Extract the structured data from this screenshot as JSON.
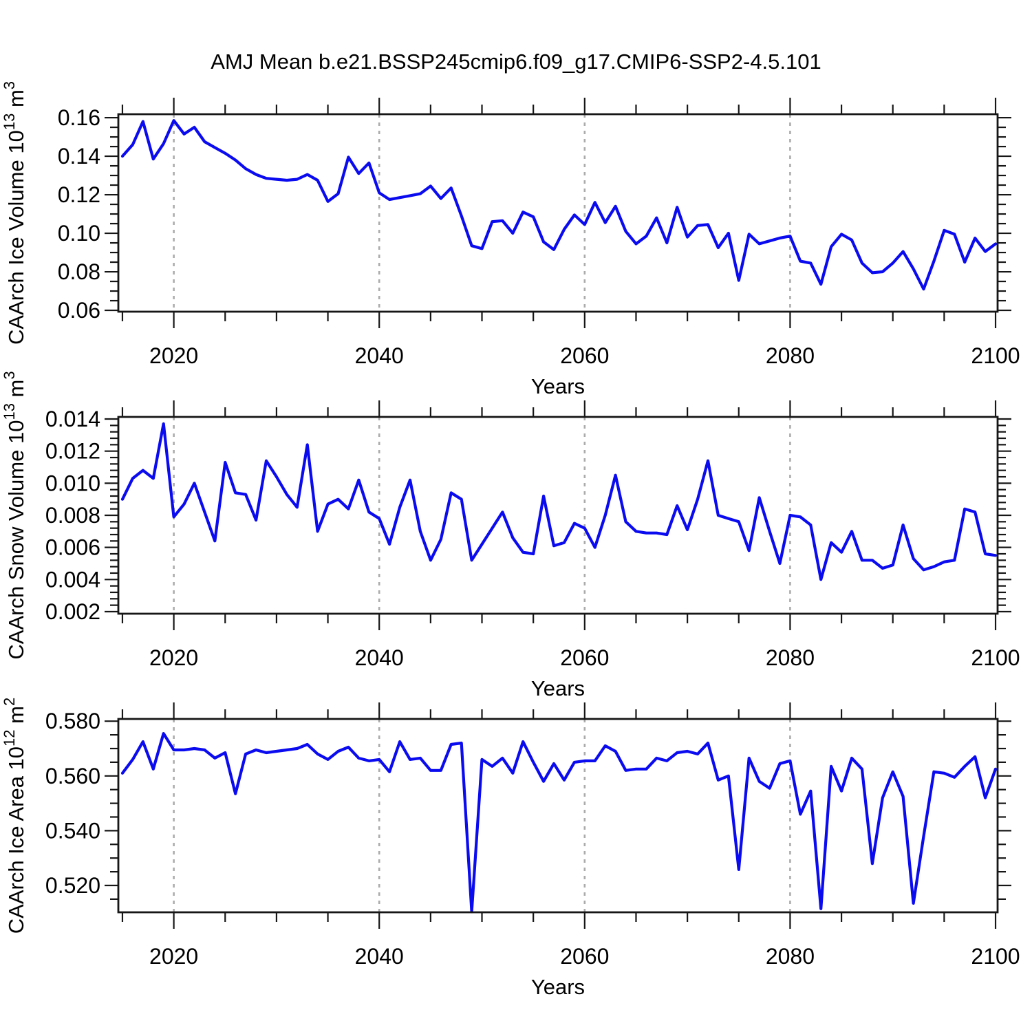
{
  "title": "AMJ Mean b.e21.BSSP245cmip6.f09_g17.CMIP6-SSP2-4.5.101",
  "colors": {
    "line": "#0b0bf0",
    "frame": "#161616",
    "grid": "#ababab",
    "text": "#000000",
    "background": "#ffffff"
  },
  "years": [
    2015,
    2016,
    2017,
    2018,
    2019,
    2020,
    2021,
    2022,
    2023,
    2024,
    2025,
    2026,
    2027,
    2028,
    2029,
    2030,
    2031,
    2032,
    2033,
    2034,
    2035,
    2036,
    2037,
    2038,
    2039,
    2040,
    2041,
    2042,
    2043,
    2044,
    2045,
    2046,
    2047,
    2048,
    2049,
    2050,
    2051,
    2052,
    2053,
    2054,
    2055,
    2056,
    2057,
    2058,
    2059,
    2060,
    2061,
    2062,
    2063,
    2064,
    2065,
    2066,
    2067,
    2068,
    2069,
    2070,
    2071,
    2072,
    2073,
    2074,
    2075,
    2076,
    2077,
    2078,
    2079,
    2080,
    2081,
    2082,
    2083,
    2084,
    2085,
    2086,
    2087,
    2088,
    2089,
    2090,
    2091,
    2092,
    2093,
    2094,
    2095,
    2096,
    2097,
    2098,
    2099,
    2100
  ],
  "chart_data": [
    {
      "type": "line",
      "ylabel": "CAArch Ice Volume 10¹³ m³",
      "ylabel_parts": [
        {
          "t": "CAArch Ice Volume 10"
        },
        {
          "t": "13",
          "sup": true
        },
        {
          "t": " m"
        },
        {
          "t": "3",
          "sup": true
        }
      ],
      "xlabel": "Years",
      "xlim": [
        2014.6,
        2100.2
      ],
      "ylim": [
        0.0593,
        0.1618
      ],
      "yticks": [
        0.06,
        0.08,
        0.1,
        0.12,
        0.14,
        0.16
      ],
      "ytick_labels": [
        "0.06",
        "0.08",
        "0.10",
        "0.12",
        "0.14",
        "0.16"
      ],
      "y_minor_step": 0.005,
      "x_major_ticks": [
        2020,
        2040,
        2060,
        2080,
        2100
      ],
      "xtick_labels": [
        "2020",
        "2040",
        "2060",
        "2080",
        "2100"
      ],
      "x_minor_step": 5,
      "grid_x": [
        2020,
        2040,
        2060,
        2080
      ],
      "grid_on": true,
      "legend": "none",
      "values": [
        0.14,
        0.146,
        0.158,
        0.1385,
        0.1465,
        0.1585,
        0.1515,
        0.155,
        0.1475,
        0.1445,
        0.1415,
        0.138,
        0.1335,
        0.1305,
        0.1285,
        0.128,
        0.1275,
        0.128,
        0.1305,
        0.1275,
        0.1165,
        0.1205,
        0.1395,
        0.131,
        0.1365,
        0.121,
        0.1175,
        0.1185,
        0.1195,
        0.1205,
        0.1245,
        0.118,
        0.1235,
        0.109,
        0.0935,
        0.092,
        0.106,
        0.1065,
        0.1,
        0.111,
        0.1085,
        0.0955,
        0.0915,
        0.102,
        0.1095,
        0.1045,
        0.116,
        0.1055,
        0.114,
        0.101,
        0.0945,
        0.0985,
        0.108,
        0.095,
        0.1135,
        0.098,
        0.104,
        0.1045,
        0.0925,
        0.1,
        0.0755,
        0.0995,
        0.0945,
        0.096,
        0.0975,
        0.0985,
        0.0855,
        0.0845,
        0.0735,
        0.093,
        0.0995,
        0.0965,
        0.0845,
        0.0795,
        0.08,
        0.0845,
        0.0905,
        0.0815,
        0.071,
        0.0855,
        0.1015,
        0.0995,
        0.085,
        0.0975,
        0.0905,
        0.0945
      ]
    },
    {
      "type": "line",
      "ylabel": "CAArch Snow Volume 10¹³ m³",
      "ylabel_parts": [
        {
          "t": "CAArch Snow Volume 10"
        },
        {
          "t": "13",
          "sup": true
        },
        {
          "t": " m"
        },
        {
          "t": "3",
          "sup": true
        }
      ],
      "xlabel": "Years",
      "xlim": [
        2014.6,
        2100.2
      ],
      "ylim": [
        0.00187,
        0.01413
      ],
      "yticks": [
        0.002,
        0.004,
        0.006,
        0.008,
        0.01,
        0.012,
        0.014
      ],
      "ytick_labels": [
        "0.002",
        "0.004",
        "0.006",
        "0.008",
        "0.010",
        "0.012",
        "0.014"
      ],
      "y_minor_step": 0.0004,
      "x_major_ticks": [
        2020,
        2040,
        2060,
        2080,
        2100
      ],
      "xtick_labels": [
        "2020",
        "2040",
        "2060",
        "2080",
        "2100"
      ],
      "x_minor_step": 5,
      "grid_x": [
        2020,
        2040,
        2060,
        2080
      ],
      "grid_on": true,
      "legend": "none",
      "values": [
        0.009,
        0.0103,
        0.0108,
        0.0103,
        0.0137,
        0.0079,
        0.0087,
        0.01,
        0.0082,
        0.0064,
        0.0113,
        0.0094,
        0.0093,
        0.0077,
        0.0114,
        0.0104,
        0.0093,
        0.0085,
        0.0124,
        0.007,
        0.0087,
        0.009,
        0.0084,
        0.0102,
        0.0082,
        0.0078,
        0.0062,
        0.0085,
        0.0102,
        0.007,
        0.0052,
        0.0065,
        0.0094,
        0.009,
        0.0052,
        0.0062,
        0.0072,
        0.0082,
        0.0066,
        0.0057,
        0.0056,
        0.0092,
        0.0061,
        0.0063,
        0.0075,
        0.0072,
        0.006,
        0.008,
        0.0105,
        0.0076,
        0.007,
        0.0069,
        0.0069,
        0.0068,
        0.0086,
        0.0071,
        0.009,
        0.0114,
        0.008,
        0.0078,
        0.0076,
        0.0058,
        0.0091,
        0.007,
        0.005,
        0.008,
        0.0079,
        0.0074,
        0.004,
        0.0063,
        0.0057,
        0.007,
        0.0052,
        0.0052,
        0.0047,
        0.0049,
        0.0074,
        0.0053,
        0.0046,
        0.0048,
        0.0051,
        0.0052,
        0.0084,
        0.0082,
        0.0056,
        0.0055
      ]
    },
    {
      "type": "line",
      "ylabel": "CAArch Ice Area 10¹² m²",
      "ylabel_parts": [
        {
          "t": "CAArch Ice Area 10"
        },
        {
          "t": "12",
          "sup": true
        },
        {
          "t": " m"
        },
        {
          "t": "2",
          "sup": true
        }
      ],
      "xlabel": "Years",
      "xlim": [
        2014.6,
        2100.2
      ],
      "ylim": [
        0.5102,
        0.5808
      ],
      "yticks": [
        0.52,
        0.54,
        0.56,
        0.58
      ],
      "ytick_labels": [
        "0.520",
        "0.540",
        "0.560",
        "0.580"
      ],
      "y_minor_step": 0.005,
      "x_major_ticks": [
        2020,
        2040,
        2060,
        2080,
        2100
      ],
      "xtick_labels": [
        "2020",
        "2040",
        "2060",
        "2080",
        "2100"
      ],
      "x_minor_step": 5,
      "grid_x": [
        2020,
        2040,
        2060,
        2080
      ],
      "grid_on": true,
      "legend": "none",
      "values": [
        0.561,
        0.566,
        0.5725,
        0.5625,
        0.5755,
        0.5695,
        0.5695,
        0.57,
        0.5695,
        0.5665,
        0.5685,
        0.5535,
        0.568,
        0.5695,
        0.5685,
        0.569,
        0.5695,
        0.57,
        0.5715,
        0.568,
        0.566,
        0.569,
        0.5705,
        0.5665,
        0.5655,
        0.566,
        0.5615,
        0.5725,
        0.566,
        0.5665,
        0.562,
        0.562,
        0.5715,
        0.572,
        0.5104,
        0.566,
        0.5635,
        0.5665,
        0.561,
        0.5725,
        0.565,
        0.558,
        0.5645,
        0.5585,
        0.565,
        0.5655,
        0.5655,
        0.571,
        0.569,
        0.562,
        0.5625,
        0.5625,
        0.5665,
        0.5655,
        0.5685,
        0.569,
        0.568,
        0.572,
        0.5585,
        0.56,
        0.5258,
        0.5665,
        0.558,
        0.5555,
        0.5645,
        0.5655,
        0.546,
        0.5545,
        0.5115,
        0.5635,
        0.5545,
        0.5665,
        0.5625,
        0.528,
        0.552,
        0.5615,
        0.5525,
        0.5135,
        0.538,
        0.5615,
        0.561,
        0.5595,
        0.5635,
        0.567,
        0.552,
        0.5625
      ]
    }
  ]
}
